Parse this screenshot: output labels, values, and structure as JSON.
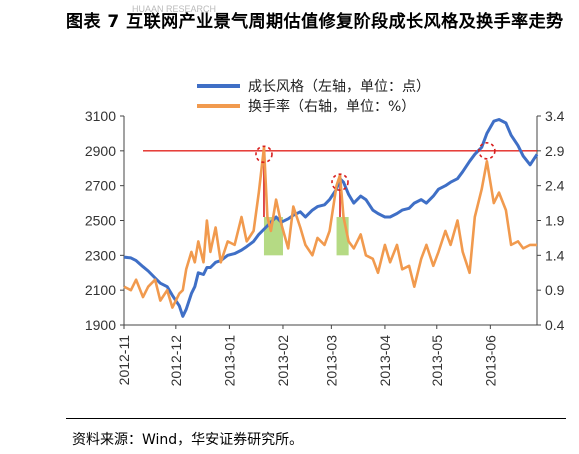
{
  "title": "图表 7  互联网产业景气周期估值修复阶段成长风格及换手率走势",
  "source": "资料来源：Wind，华安证券研究所。",
  "watermark": "HUAAN RESEARCH",
  "colors": {
    "style_line": "#3f6fc6",
    "turnover_line": "#f19a4e",
    "ref_line": "#e3251f",
    "highlight": "#a8d46f",
    "marker": "#d81f1f"
  },
  "chart_data": {
    "type": "line",
    "x_axis": {
      "ticks": [
        "2012-11",
        "2012-12",
        "2013-01",
        "2013-02",
        "2013-03",
        "2013-04",
        "2013-05",
        "2013-06"
      ],
      "range": [
        "2012-11-01",
        "2013-06-28"
      ]
    },
    "y_left": {
      "ticks": [
        "1900",
        "2100",
        "2300",
        "2500",
        "2700",
        "2900",
        "3100"
      ],
      "range": [
        1900,
        3100
      ]
    },
    "y_right": {
      "ticks": [
        "0.4",
        "0.9",
        "1.4",
        "1.9",
        "2.4",
        "2.9",
        "3.4"
      ],
      "range": [
        0.4,
        3.4
      ]
    },
    "reference_line_left": 2900,
    "grid": false,
    "legend_position": "top",
    "series": [
      {
        "name": "成长风格（左轴，单位：点）",
        "axis": "left",
        "points": [
          [
            "2012-11-01",
            2290
          ],
          [
            "2012-11-05",
            2285
          ],
          [
            "2012-11-08",
            2270
          ],
          [
            "2012-11-12",
            2235
          ],
          [
            "2012-11-15",
            2210
          ],
          [
            "2012-11-19",
            2170
          ],
          [
            "2012-11-22",
            2140
          ],
          [
            "2012-11-26",
            2120
          ],
          [
            "2012-11-29",
            2070
          ],
          [
            "2012-12-03",
            2010
          ],
          [
            "2012-12-05",
            1950
          ],
          [
            "2012-12-07",
            1990
          ],
          [
            "2012-12-10",
            2080
          ],
          [
            "2012-12-12",
            2120
          ],
          [
            "2012-12-14",
            2200
          ],
          [
            "2012-12-17",
            2190
          ],
          [
            "2012-12-19",
            2230
          ],
          [
            "2012-12-21",
            2230
          ],
          [
            "2012-12-24",
            2260
          ],
          [
            "2012-12-27",
            2270
          ],
          [
            "2012-12-31",
            2300
          ],
          [
            "2013-01-04",
            2310
          ],
          [
            "2013-01-08",
            2330
          ],
          [
            "2013-01-11",
            2350
          ],
          [
            "2013-01-15",
            2380
          ],
          [
            "2013-01-18",
            2420
          ],
          [
            "2013-01-22",
            2460
          ],
          [
            "2013-01-25",
            2490
          ],
          [
            "2013-01-28",
            2520
          ],
          [
            "2013-01-31",
            2490
          ],
          [
            "2013-02-04",
            2510
          ],
          [
            "2013-02-07",
            2530
          ],
          [
            "2013-02-11",
            2550
          ],
          [
            "2013-02-14",
            2520
          ],
          [
            "2013-02-18",
            2560
          ],
          [
            "2013-02-21",
            2580
          ],
          [
            "2013-02-25",
            2590
          ],
          [
            "2013-02-28",
            2620
          ],
          [
            "2013-03-04",
            2680
          ],
          [
            "2013-03-06",
            2740
          ],
          [
            "2013-03-08",
            2720
          ],
          [
            "2013-03-11",
            2650
          ],
          [
            "2013-03-14",
            2600
          ],
          [
            "2013-03-18",
            2640
          ],
          [
            "2013-03-21",
            2620
          ],
          [
            "2013-03-25",
            2560
          ],
          [
            "2013-03-28",
            2540
          ],
          [
            "2013-04-01",
            2520
          ],
          [
            "2013-04-04",
            2520
          ],
          [
            "2013-04-08",
            2540
          ],
          [
            "2013-04-11",
            2560
          ],
          [
            "2013-04-15",
            2570
          ],
          [
            "2013-04-18",
            2600
          ],
          [
            "2013-04-22",
            2620
          ],
          [
            "2013-04-25",
            2600
          ],
          [
            "2013-04-29",
            2640
          ],
          [
            "2013-05-02",
            2680
          ],
          [
            "2013-05-06",
            2700
          ],
          [
            "2013-05-09",
            2720
          ],
          [
            "2013-05-13",
            2740
          ],
          [
            "2013-05-16",
            2780
          ],
          [
            "2013-05-20",
            2840
          ],
          [
            "2013-05-23",
            2880
          ],
          [
            "2013-05-27",
            2920
          ],
          [
            "2013-05-30",
            3000
          ],
          [
            "2013-06-03",
            3070
          ],
          [
            "2013-06-06",
            3080
          ],
          [
            "2013-06-10",
            3060
          ],
          [
            "2013-06-13",
            2990
          ],
          [
            "2013-06-17",
            2930
          ],
          [
            "2013-06-20",
            2870
          ],
          [
            "2013-06-24",
            2820
          ],
          [
            "2013-06-28",
            2880
          ]
        ]
      },
      {
        "name": "换手率（右轴，单位：%）",
        "axis": "right",
        "points": [
          [
            "2012-11-01",
            0.95
          ],
          [
            "2012-11-05",
            0.9
          ],
          [
            "2012-11-08",
            1.05
          ],
          [
            "2012-11-12",
            0.8
          ],
          [
            "2012-11-15",
            0.95
          ],
          [
            "2012-11-19",
            1.05
          ],
          [
            "2012-11-22",
            0.75
          ],
          [
            "2012-11-26",
            0.9
          ],
          [
            "2012-11-29",
            0.65
          ],
          [
            "2012-12-03",
            0.85
          ],
          [
            "2012-12-05",
            0.9
          ],
          [
            "2012-12-07",
            1.2
          ],
          [
            "2012-12-10",
            1.45
          ],
          [
            "2012-12-12",
            1.3
          ],
          [
            "2012-12-14",
            1.6
          ],
          [
            "2012-12-17",
            1.3
          ],
          [
            "2012-12-19",
            1.9
          ],
          [
            "2012-12-21",
            1.45
          ],
          [
            "2012-12-24",
            1.8
          ],
          [
            "2012-12-27",
            1.3
          ],
          [
            "2012-12-31",
            1.6
          ],
          [
            "2013-01-04",
            1.55
          ],
          [
            "2013-01-08",
            1.95
          ],
          [
            "2013-01-11",
            1.6
          ],
          [
            "2013-01-15",
            1.75
          ],
          [
            "2013-01-18",
            2.3
          ],
          [
            "2013-01-21",
            2.95
          ],
          [
            "2013-01-23",
            1.95
          ],
          [
            "2013-01-25",
            1.75
          ],
          [
            "2013-01-28",
            2.2
          ],
          [
            "2013-01-31",
            1.85
          ],
          [
            "2013-02-04",
            1.5
          ],
          [
            "2013-02-07",
            2.1
          ],
          [
            "2013-02-11",
            1.8
          ],
          [
            "2013-02-14",
            1.55
          ],
          [
            "2013-02-18",
            1.4
          ],
          [
            "2013-02-21",
            1.65
          ],
          [
            "2013-02-25",
            1.55
          ],
          [
            "2013-02-28",
            1.75
          ],
          [
            "2013-03-04",
            2.4
          ],
          [
            "2013-03-06",
            2.55
          ],
          [
            "2013-03-08",
            1.95
          ],
          [
            "2013-03-11",
            1.6
          ],
          [
            "2013-03-14",
            1.5
          ],
          [
            "2013-03-18",
            1.7
          ],
          [
            "2013-03-21",
            1.4
          ],
          [
            "2013-03-25",
            1.35
          ],
          [
            "2013-03-28",
            1.15
          ],
          [
            "2013-04-01",
            1.55
          ],
          [
            "2013-04-04",
            1.3
          ],
          [
            "2013-04-08",
            1.55
          ],
          [
            "2013-04-11",
            1.2
          ],
          [
            "2013-04-15",
            1.25
          ],
          [
            "2013-04-18",
            0.95
          ],
          [
            "2013-04-22",
            1.35
          ],
          [
            "2013-04-25",
            1.55
          ],
          [
            "2013-04-29",
            1.25
          ],
          [
            "2013-05-02",
            1.45
          ],
          [
            "2013-05-06",
            1.75
          ],
          [
            "2013-05-09",
            1.55
          ],
          [
            "2013-05-13",
            1.9
          ],
          [
            "2013-05-16",
            1.45
          ],
          [
            "2013-05-20",
            1.15
          ],
          [
            "2013-05-23",
            1.95
          ],
          [
            "2013-05-27",
            2.35
          ],
          [
            "2013-05-30",
            2.75
          ],
          [
            "2013-06-03",
            2.15
          ],
          [
            "2013-06-06",
            2.3
          ],
          [
            "2013-06-10",
            2.05
          ],
          [
            "2013-06-13",
            1.55
          ],
          [
            "2013-06-17",
            1.6
          ],
          [
            "2013-06-20",
            1.5
          ],
          [
            "2013-06-24",
            1.55
          ],
          [
            "2013-06-28",
            1.55
          ]
        ]
      }
    ],
    "highlight_ranges": [
      [
        "2013-01-21",
        "2013-02-01"
      ],
      [
        "2013-03-04",
        "2013-03-11"
      ]
    ],
    "peak_markers": [
      "2013-01-21",
      "2013-03-06",
      "2013-05-30"
    ]
  }
}
